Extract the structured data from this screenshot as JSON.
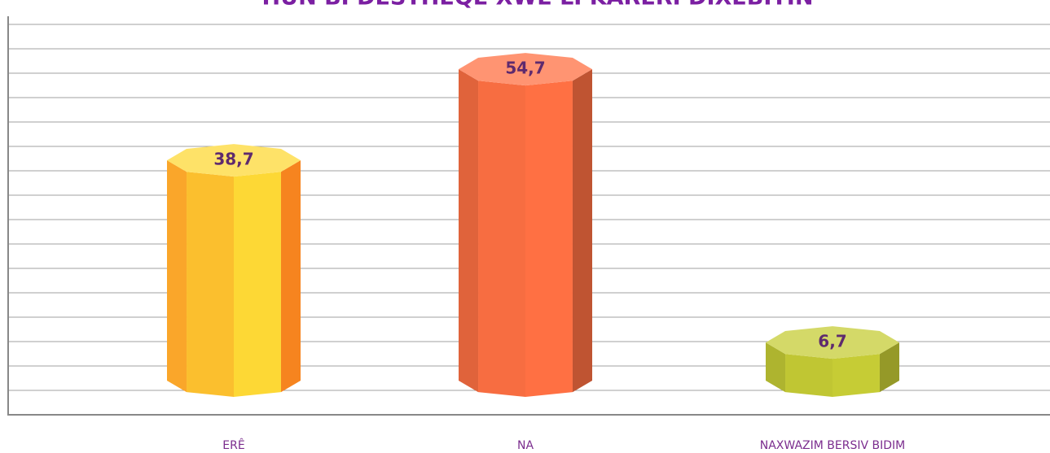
{
  "chart_data": {
    "type": "bar",
    "title": "HÛN BI DESTHEQE XWE LI KARERI DIXEBITIN",
    "categories": [
      "ERÊ",
      "NA",
      "NAXWAZIM BERSIV BIDIM"
    ],
    "values": [
      38.7,
      54.7,
      6.7
    ],
    "value_labels": [
      "38,7",
      "54,7",
      "6,7"
    ],
    "colors": [
      "#fdd835",
      "#ff7043",
      "#c6cc35"
    ],
    "ylim": [
      0,
      60
    ]
  }
}
